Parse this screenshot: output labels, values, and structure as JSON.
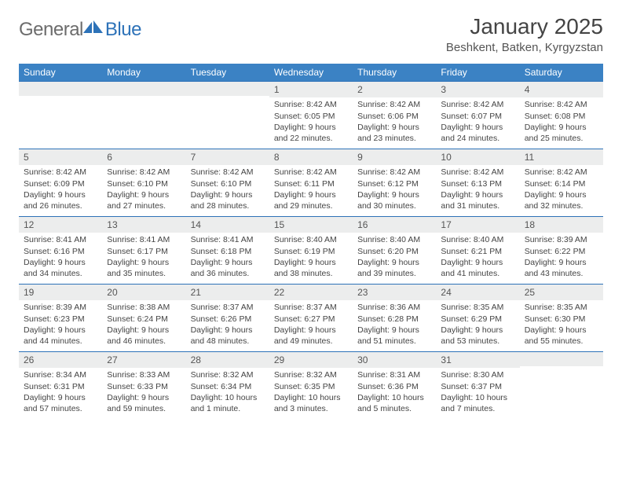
{
  "logo": {
    "text1": "General",
    "text2": "Blue"
  },
  "title": "January 2025",
  "location": "Beshkent, Batken, Kyrgyzstan",
  "colors": {
    "header_bg": "#3b82c4",
    "header_text": "#ffffff",
    "border": "#2d72b8",
    "daynum_bg": "#eceded",
    "logo_gray": "#6c6c6c",
    "logo_blue": "#2d72b8"
  },
  "day_headers": [
    "Sunday",
    "Monday",
    "Tuesday",
    "Wednesday",
    "Thursday",
    "Friday",
    "Saturday"
  ],
  "weeks": [
    [
      {
        "n": "",
        "t": ""
      },
      {
        "n": "",
        "t": ""
      },
      {
        "n": "",
        "t": ""
      },
      {
        "n": "1",
        "t": "Sunrise: 8:42 AM\nSunset: 6:05 PM\nDaylight: 9 hours and 22 minutes."
      },
      {
        "n": "2",
        "t": "Sunrise: 8:42 AM\nSunset: 6:06 PM\nDaylight: 9 hours and 23 minutes."
      },
      {
        "n": "3",
        "t": "Sunrise: 8:42 AM\nSunset: 6:07 PM\nDaylight: 9 hours and 24 minutes."
      },
      {
        "n": "4",
        "t": "Sunrise: 8:42 AM\nSunset: 6:08 PM\nDaylight: 9 hours and 25 minutes."
      }
    ],
    [
      {
        "n": "5",
        "t": "Sunrise: 8:42 AM\nSunset: 6:09 PM\nDaylight: 9 hours and 26 minutes."
      },
      {
        "n": "6",
        "t": "Sunrise: 8:42 AM\nSunset: 6:10 PM\nDaylight: 9 hours and 27 minutes."
      },
      {
        "n": "7",
        "t": "Sunrise: 8:42 AM\nSunset: 6:10 PM\nDaylight: 9 hours and 28 minutes."
      },
      {
        "n": "8",
        "t": "Sunrise: 8:42 AM\nSunset: 6:11 PM\nDaylight: 9 hours and 29 minutes."
      },
      {
        "n": "9",
        "t": "Sunrise: 8:42 AM\nSunset: 6:12 PM\nDaylight: 9 hours and 30 minutes."
      },
      {
        "n": "10",
        "t": "Sunrise: 8:42 AM\nSunset: 6:13 PM\nDaylight: 9 hours and 31 minutes."
      },
      {
        "n": "11",
        "t": "Sunrise: 8:42 AM\nSunset: 6:14 PM\nDaylight: 9 hours and 32 minutes."
      }
    ],
    [
      {
        "n": "12",
        "t": "Sunrise: 8:41 AM\nSunset: 6:16 PM\nDaylight: 9 hours and 34 minutes."
      },
      {
        "n": "13",
        "t": "Sunrise: 8:41 AM\nSunset: 6:17 PM\nDaylight: 9 hours and 35 minutes."
      },
      {
        "n": "14",
        "t": "Sunrise: 8:41 AM\nSunset: 6:18 PM\nDaylight: 9 hours and 36 minutes."
      },
      {
        "n": "15",
        "t": "Sunrise: 8:40 AM\nSunset: 6:19 PM\nDaylight: 9 hours and 38 minutes."
      },
      {
        "n": "16",
        "t": "Sunrise: 8:40 AM\nSunset: 6:20 PM\nDaylight: 9 hours and 39 minutes."
      },
      {
        "n": "17",
        "t": "Sunrise: 8:40 AM\nSunset: 6:21 PM\nDaylight: 9 hours and 41 minutes."
      },
      {
        "n": "18",
        "t": "Sunrise: 8:39 AM\nSunset: 6:22 PM\nDaylight: 9 hours and 43 minutes."
      }
    ],
    [
      {
        "n": "19",
        "t": "Sunrise: 8:39 AM\nSunset: 6:23 PM\nDaylight: 9 hours and 44 minutes."
      },
      {
        "n": "20",
        "t": "Sunrise: 8:38 AM\nSunset: 6:24 PM\nDaylight: 9 hours and 46 minutes."
      },
      {
        "n": "21",
        "t": "Sunrise: 8:37 AM\nSunset: 6:26 PM\nDaylight: 9 hours and 48 minutes."
      },
      {
        "n": "22",
        "t": "Sunrise: 8:37 AM\nSunset: 6:27 PM\nDaylight: 9 hours and 49 minutes."
      },
      {
        "n": "23",
        "t": "Sunrise: 8:36 AM\nSunset: 6:28 PM\nDaylight: 9 hours and 51 minutes."
      },
      {
        "n": "24",
        "t": "Sunrise: 8:35 AM\nSunset: 6:29 PM\nDaylight: 9 hours and 53 minutes."
      },
      {
        "n": "25",
        "t": "Sunrise: 8:35 AM\nSunset: 6:30 PM\nDaylight: 9 hours and 55 minutes."
      }
    ],
    [
      {
        "n": "26",
        "t": "Sunrise: 8:34 AM\nSunset: 6:31 PM\nDaylight: 9 hours and 57 minutes."
      },
      {
        "n": "27",
        "t": "Sunrise: 8:33 AM\nSunset: 6:33 PM\nDaylight: 9 hours and 59 minutes."
      },
      {
        "n": "28",
        "t": "Sunrise: 8:32 AM\nSunset: 6:34 PM\nDaylight: 10 hours and 1 minute."
      },
      {
        "n": "29",
        "t": "Sunrise: 8:32 AM\nSunset: 6:35 PM\nDaylight: 10 hours and 3 minutes."
      },
      {
        "n": "30",
        "t": "Sunrise: 8:31 AM\nSunset: 6:36 PM\nDaylight: 10 hours and 5 minutes."
      },
      {
        "n": "31",
        "t": "Sunrise: 8:30 AM\nSunset: 6:37 PM\nDaylight: 10 hours and 7 minutes."
      },
      {
        "n": "",
        "t": ""
      }
    ]
  ]
}
